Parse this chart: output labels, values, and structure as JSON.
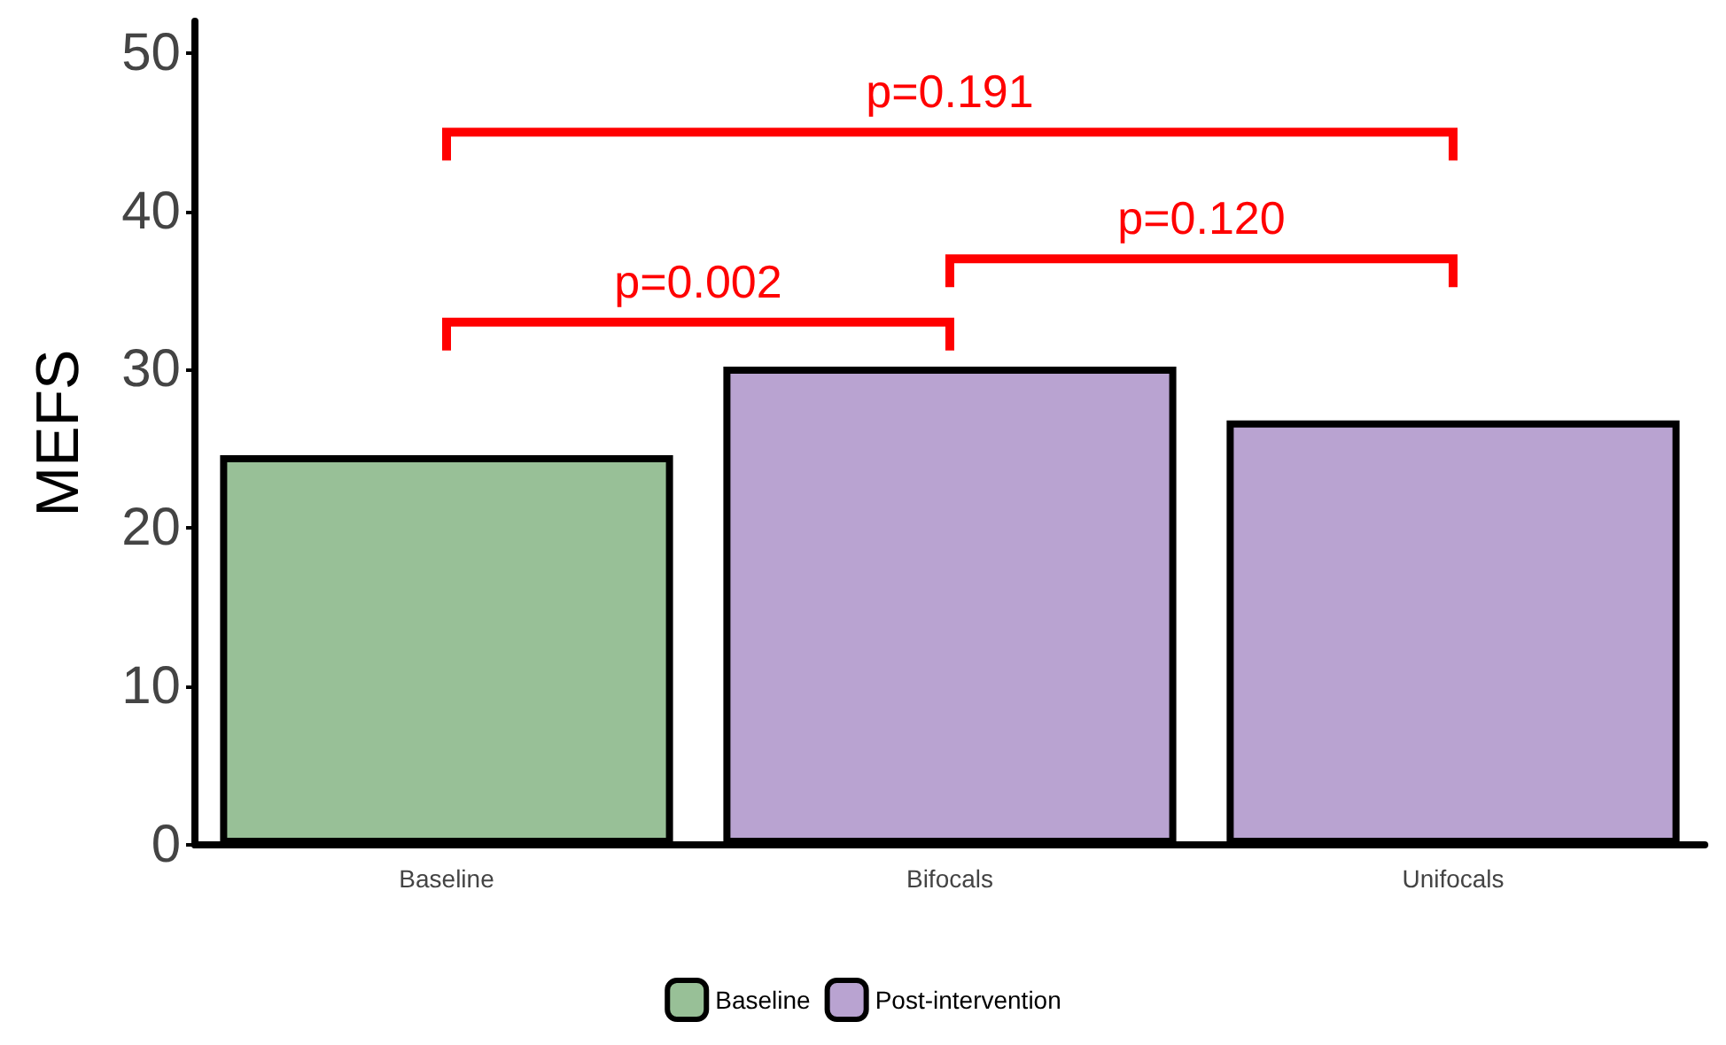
{
  "chart_data": {
    "type": "bar",
    "ylabel": "MEFS",
    "categories": [
      "Baseline",
      "Bifocals",
      "Unifocals"
    ],
    "series": [
      {
        "name": "Baseline",
        "color": "#98c097",
        "values": [
          24.6,
          null,
          null
        ]
      },
      {
        "name": "Post-intervention",
        "color": "#b9a3d1",
        "values": [
          null,
          30.2,
          26.8
        ]
      }
    ],
    "stacked": true,
    "ylim": [
      0,
      52
    ],
    "yticks": [
      0,
      10,
      20,
      30,
      40,
      50
    ],
    "grid": false,
    "legend": "bottom",
    "annotations": [
      "p=0.002",
      "p=0.120",
      "p=0.191"
    ]
  }
}
